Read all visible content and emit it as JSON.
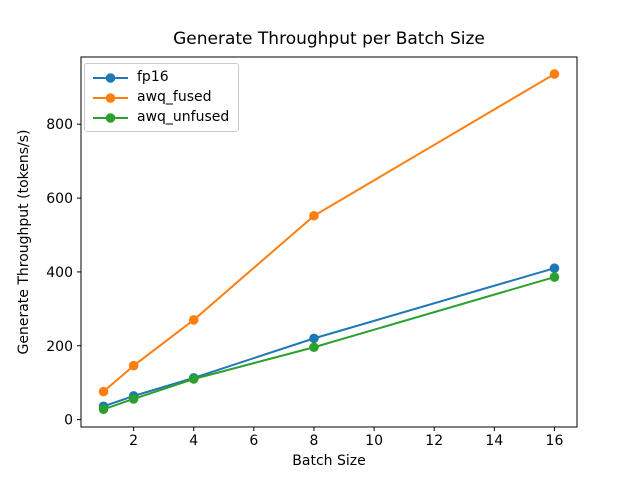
{
  "chart_data": {
    "type": "line",
    "title": "Generate Throughput per Batch Size",
    "xlabel": "Batch Size",
    "ylabel": "Generate Throughput (tokens/s)",
    "x": [
      1,
      2,
      4,
      8,
      16
    ],
    "series": [
      {
        "name": "fp16",
        "color": "#1f77b4",
        "values": [
          36,
          64,
          113,
          220,
          410
        ]
      },
      {
        "name": "awq_fused",
        "color": "#ff7f0e",
        "values": [
          76,
          146,
          270,
          552,
          936
        ]
      },
      {
        "name": "awq_unfused",
        "color": "#2ca02c",
        "values": [
          28,
          56,
          110,
          196,
          386
        ]
      }
    ],
    "xticks": [
      2,
      4,
      6,
      8,
      10,
      12,
      14,
      16
    ],
    "yticks": [
      0,
      200,
      400,
      600,
      800
    ],
    "xlim": [
      0.25,
      16.75
    ],
    "ylim": [
      -20,
      982
    ],
    "grid": false,
    "marker": "o",
    "legend": {
      "position": "upper left",
      "entries": [
        "fp16",
        "awq_fused",
        "awq_unfused"
      ]
    },
    "colors": {
      "text": "#000000",
      "spine": "#000000",
      "legend_border": "#cccccc",
      "background": "#ffffff"
    }
  }
}
